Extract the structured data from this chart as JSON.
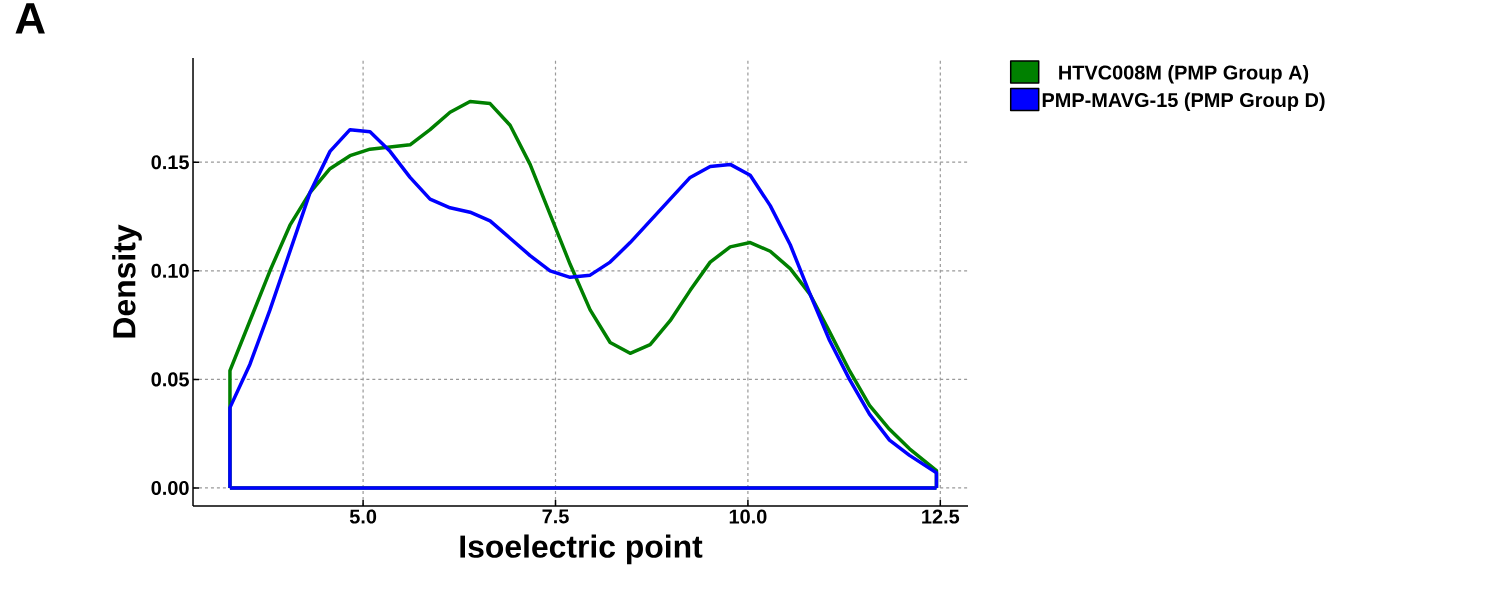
{
  "chart_data": {
    "type": "line",
    "xlabel": "Isoelectric point",
    "ylabel": "Density",
    "annotations": [
      "A"
    ],
    "xlim": [
      2.79,
      12.86
    ],
    "ylim": [
      -0.0083,
      0.198
    ],
    "xticks": [
      {
        "value": 5,
        "label": "5.0"
      },
      {
        "value": 7.5,
        "label": "7.5"
      },
      {
        "value": 10,
        "label": "10.0"
      },
      {
        "value": 12.5,
        "label": "12.5"
      }
    ],
    "yticks": [
      {
        "value": 0,
        "label": "0.00"
      },
      {
        "value": 0.05,
        "label": "0.05"
      },
      {
        "value": 0.1,
        "label": "0.10"
      },
      {
        "value": 0.15,
        "label": "0.15"
      }
    ],
    "ref_lines": [
      {
        "axis": "y",
        "value": 0,
        "color": "#008000"
      },
      {
        "axis": "y",
        "value": 0,
        "color": "#0000ff"
      }
    ],
    "grid": true,
    "legend": "top right",
    "marker": "none",
    "line_style": "solid",
    "series": [
      {
        "name": "HTVC008M (PMP Group A)",
        "color": "#008000",
        "x": [
          3.27,
          3.27,
          3.53,
          3.79,
          4.05,
          4.31,
          4.57,
          4.83,
          5.09,
          5.35,
          5.61,
          5.87,
          6.13,
          6.39,
          6.65,
          6.91,
          7.17,
          7.43,
          7.69,
          7.95,
          8.21,
          8.47,
          8.73,
          8.99,
          9.25,
          9.51,
          9.77,
          10.03,
          10.29,
          10.55,
          10.81,
          11.06,
          11.32,
          11.58,
          11.84,
          12.1,
          12.45,
          12.45
        ],
        "values": [
          0,
          0.054,
          0.077,
          0.1,
          0.121,
          0.136,
          0.147,
          0.153,
          0.156,
          0.157,
          0.158,
          0.165,
          0.173,
          0.178,
          0.177,
          0.167,
          0.149,
          0.126,
          0.103,
          0.082,
          0.067,
          0.062,
          0.066,
          0.077,
          0.091,
          0.104,
          0.111,
          0.113,
          0.109,
          0.101,
          0.089,
          0.072,
          0.054,
          0.038,
          0.027,
          0.018,
          0.008,
          0
        ]
      },
      {
        "name": "PMP-MAVG-15 (PMP Group D)",
        "color": "#0000ff",
        "x": [
          3.27,
          3.27,
          3.53,
          3.79,
          4.05,
          4.31,
          4.57,
          4.83,
          5.09,
          5.35,
          5.61,
          5.87,
          6.13,
          6.39,
          6.65,
          6.91,
          7.17,
          7.43,
          7.69,
          7.95,
          8.21,
          8.47,
          8.73,
          8.99,
          9.25,
          9.51,
          9.77,
          10.03,
          10.29,
          10.55,
          10.81,
          11.06,
          11.32,
          11.58,
          11.84,
          12.1,
          12.45,
          12.45
        ],
        "values": [
          0,
          0.037,
          0.057,
          0.082,
          0.109,
          0.136,
          0.155,
          0.165,
          0.164,
          0.155,
          0.143,
          0.133,
          0.129,
          0.127,
          0.123,
          0.115,
          0.107,
          0.1,
          0.097,
          0.098,
          0.104,
          0.113,
          0.123,
          0.133,
          0.143,
          0.148,
          0.149,
          0.144,
          0.13,
          0.112,
          0.089,
          0.068,
          0.05,
          0.034,
          0.022,
          0.015,
          0.007,
          0
        ]
      }
    ]
  }
}
